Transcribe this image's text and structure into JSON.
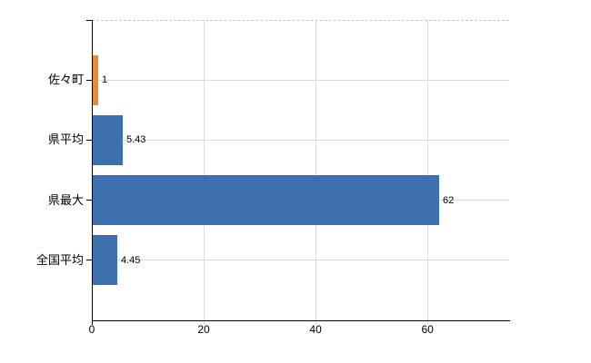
{
  "chart_data": {
    "type": "bar",
    "orientation": "horizontal",
    "title": "",
    "xlabel": "",
    "ylabel": "",
    "categories": [
      "佐々町",
      "県平均",
      "県最大",
      "全国平均"
    ],
    "values": [
      1,
      5.43,
      62,
      4.45
    ],
    "value_labels": [
      "1",
      "5.43",
      "62",
      "4.45"
    ],
    "bar_colors": [
      "#e78b3a",
      "#3e6fae",
      "#3e6fae",
      "#3e6fae"
    ],
    "xlim": [
      0,
      74.6
    ],
    "x_ticks": [
      0,
      20,
      40,
      60
    ],
    "x_tick_labels": [
      "0",
      "20",
      "40",
      "60"
    ],
    "grid": "on",
    "legend": "none",
    "colors": {
      "bar_orange": "#e78b3a",
      "bar_blue": "#3e6fae",
      "axis": "#000000",
      "grid_vertical": "#dcdcdc",
      "grid_horizontal": "#d6ddd1",
      "plot_top_border": "#c9c9c9",
      "background": "#ffffff",
      "text": "#000000"
    }
  }
}
